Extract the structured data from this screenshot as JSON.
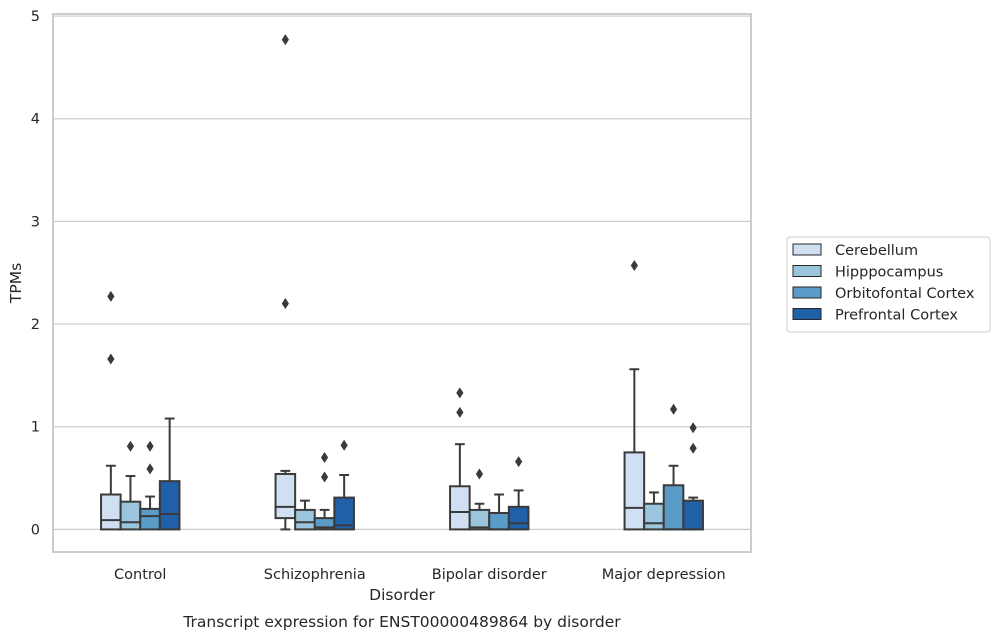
{
  "chart_data": {
    "type": "boxplot",
    "xlabel": "Disorder",
    "ylabel": "TPMs",
    "caption": "Transcript expression for ENST00000489864 by disorder",
    "ylim": [
      -0.22,
      5.02
    ],
    "yticks": [
      "0",
      "1",
      "2",
      "3",
      "4",
      "5"
    ],
    "grid": "horizontal",
    "legend_position": "right",
    "categories": [
      "Control",
      "Schizophrenia",
      "Bipolar disorder",
      "Major depression"
    ],
    "series": [
      {
        "name": "Cerebellum",
        "color": "#d0e0f2",
        "boxes": [
          {
            "q1": 0.0,
            "median": 0.09,
            "q3": 0.34,
            "whisker_low": 0.0,
            "whisker_high": 0.62,
            "outliers": [
              1.66,
              2.27
            ]
          },
          {
            "q1": 0.11,
            "median": 0.22,
            "q3": 0.54,
            "whisker_low": 0.0,
            "whisker_high": 0.57,
            "outliers": [
              2.2,
              4.77
            ]
          },
          {
            "q1": 0.0,
            "median": 0.17,
            "q3": 0.42,
            "whisker_low": 0.0,
            "whisker_high": 0.83,
            "outliers": [
              1.14,
              1.33
            ]
          },
          {
            "q1": 0.0,
            "median": 0.21,
            "q3": 0.75,
            "whisker_low": 0.0,
            "whisker_high": 1.56,
            "outliers": [
              2.57
            ]
          }
        ]
      },
      {
        "name": "Hipppocampus",
        "color": "#9bc5dd",
        "boxes": [
          {
            "q1": 0.0,
            "median": 0.07,
            "q3": 0.27,
            "whisker_low": 0.0,
            "whisker_high": 0.52,
            "outliers": [
              0.81
            ]
          },
          {
            "q1": 0.0,
            "median": 0.07,
            "q3": 0.19,
            "whisker_low": 0.0,
            "whisker_high": 0.28,
            "outliers": []
          },
          {
            "q1": 0.0,
            "median": 0.02,
            "q3": 0.19,
            "whisker_low": 0.0,
            "whisker_high": 0.25,
            "outliers": [
              0.54
            ]
          },
          {
            "q1": 0.0,
            "median": 0.06,
            "q3": 0.25,
            "whisker_low": 0.0,
            "whisker_high": 0.36,
            "outliers": []
          }
        ]
      },
      {
        "name": "Orbitofontal Cortex",
        "color": "#5b9bc8",
        "boxes": [
          {
            "q1": 0.0,
            "median": 0.13,
            "q3": 0.2,
            "whisker_low": 0.0,
            "whisker_high": 0.32,
            "outliers": [
              0.59,
              0.81
            ]
          },
          {
            "q1": 0.0,
            "median": 0.02,
            "q3": 0.11,
            "whisker_low": 0.0,
            "whisker_high": 0.19,
            "outliers": [
              0.51,
              0.7
            ]
          },
          {
            "q1": 0.0,
            "median": 0.0,
            "q3": 0.16,
            "whisker_low": 0.0,
            "whisker_high": 0.34,
            "outliers": []
          },
          {
            "q1": 0.0,
            "median": 0.0,
            "q3": 0.43,
            "whisker_low": 0.0,
            "whisker_high": 0.62,
            "outliers": [
              1.17
            ]
          }
        ]
      },
      {
        "name": "Prefrontal Cortex",
        "color": "#2060a8",
        "boxes": [
          {
            "q1": 0.0,
            "median": 0.15,
            "q3": 0.47,
            "whisker_low": 0.0,
            "whisker_high": 1.08,
            "outliers": []
          },
          {
            "q1": 0.0,
            "median": 0.04,
            "q3": 0.31,
            "whisker_low": 0.0,
            "whisker_high": 0.53,
            "outliers": [
              0.82
            ]
          },
          {
            "q1": 0.0,
            "median": 0.06,
            "q3": 0.22,
            "whisker_low": 0.0,
            "whisker_high": 0.38,
            "outliers": [
              0.66
            ]
          },
          {
            "q1": 0.0,
            "median": 0.0,
            "q3": 0.28,
            "whisker_low": 0.0,
            "whisker_high": 0.31,
            "outliers": [
              0.79,
              0.99
            ]
          }
        ]
      }
    ]
  }
}
